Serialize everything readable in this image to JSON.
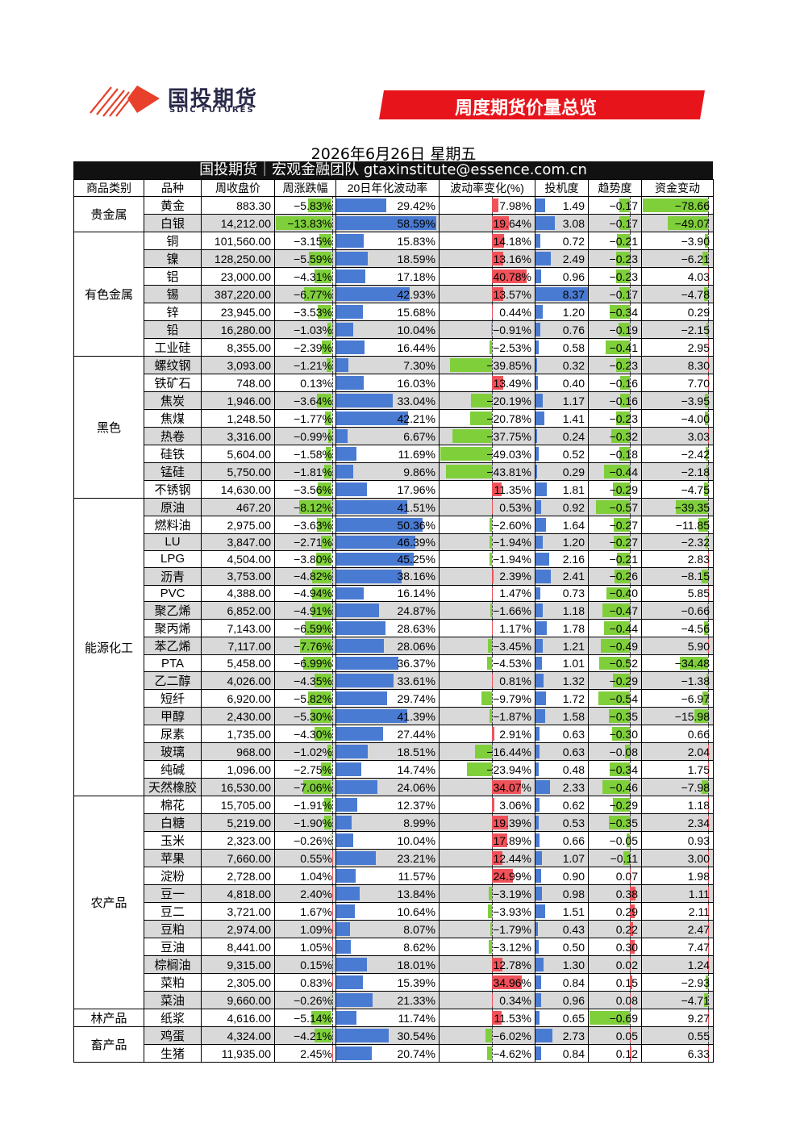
{
  "header": {
    "logo_cn": "国投期货",
    "logo_en": "SDIC FUTURES",
    "banner": "周度期货价量总览",
    "date": "2026年6月26日 星期五",
    "team": "国投期货｜宏观金融团队 gtaxinstitute@essence.com.cn"
  },
  "colors": {
    "banner": "#e8141b",
    "bar_blue": "#4a7bd3",
    "bar_red": "#f0525a",
    "bar_green": "#7fcf3b",
    "stripe": "#d9d9d9"
  },
  "columns": [
    "商品类别",
    "品种",
    "周收盘价",
    "周涨跌幅",
    "20日年化波动率",
    "波动率变化(%)",
    "投机度",
    "趋势度",
    "资金变动"
  ],
  "groups": [
    {
      "category": "贵金属",
      "rows": [
        {
          "name": "黄金",
          "close": "883.30",
          "chg": "-5.83%",
          "vol": "29.42%",
          "volchg": "7.98%",
          "spec": "1.49",
          "trend": "-0.17",
          "fund": "-78.66"
        },
        {
          "name": "白银",
          "close": "14,212.00",
          "chg": "-13.83%",
          "vol": "58.59%",
          "volchg": "19.64%",
          "spec": "3.08",
          "trend": "-0.17",
          "fund": "-49.07"
        }
      ]
    },
    {
      "category": "有色金属",
      "rows": [
        {
          "name": "铜",
          "close": "101,560.00",
          "chg": "-3.15%",
          "vol": "15.83%",
          "volchg": "14.18%",
          "spec": "0.72",
          "trend": "-0.21",
          "fund": "-3.90"
        },
        {
          "name": "镍",
          "close": "128,250.00",
          "chg": "-5.59%",
          "vol": "18.59%",
          "volchg": "13.16%",
          "spec": "2.49",
          "trend": "-0.23",
          "fund": "-6.21"
        },
        {
          "name": "铝",
          "close": "23,000.00",
          "chg": "-4.31%",
          "vol": "17.18%",
          "volchg": "40.78%",
          "spec": "0.96",
          "trend": "-0.23",
          "fund": "4.03"
        },
        {
          "name": "锡",
          "close": "387,220.00",
          "chg": "-6.77%",
          "vol": "42.93%",
          "volchg": "13.57%",
          "spec": "8.37",
          "trend": "-0.17",
          "fund": "-4.78"
        },
        {
          "name": "锌",
          "close": "23,945.00",
          "chg": "-3.53%",
          "vol": "15.68%",
          "volchg": "0.44%",
          "spec": "1.20",
          "trend": "-0.34",
          "fund": "0.29"
        },
        {
          "name": "铅",
          "close": "16,280.00",
          "chg": "-1.03%",
          "vol": "10.04%",
          "volchg": "-0.91%",
          "spec": "0.76",
          "trend": "-0.19",
          "fund": "-2.15"
        },
        {
          "name": "工业硅",
          "close": "8,355.00",
          "chg": "-2.39%",
          "vol": "16.44%",
          "volchg": "-2.53%",
          "spec": "0.58",
          "trend": "-0.41",
          "fund": "2.95"
        }
      ]
    },
    {
      "category": "黑色",
      "rows": [
        {
          "name": "螺纹钢",
          "close": "3,093.00",
          "chg": "-1.21%",
          "vol": "7.30%",
          "volchg": "-39.85%",
          "spec": "0.32",
          "trend": "-0.23",
          "fund": "8.30"
        },
        {
          "name": "铁矿石",
          "close": "748.00",
          "chg": "0.13%",
          "vol": "16.03%",
          "volchg": "13.49%",
          "spec": "0.40",
          "trend": "-0.16",
          "fund": "7.70"
        },
        {
          "name": "焦炭",
          "close": "1,946.00",
          "chg": "-3.64%",
          "vol": "33.04%",
          "volchg": "-20.19%",
          "spec": "1.17",
          "trend": "-0.16",
          "fund": "-3.95"
        },
        {
          "name": "焦煤",
          "close": "1,248.50",
          "chg": "-1.77%",
          "vol": "42.21%",
          "volchg": "-20.78%",
          "spec": "1.41",
          "trend": "-0.23",
          "fund": "-4.00"
        },
        {
          "name": "热卷",
          "close": "3,316.00",
          "chg": "-0.99%",
          "vol": "6.67%",
          "volchg": "-37.75%",
          "spec": "0.24",
          "trend": "-0.32",
          "fund": "3.03"
        },
        {
          "name": "硅铁",
          "close": "5,604.00",
          "chg": "-1.58%",
          "vol": "11.69%",
          "volchg": "-49.03%",
          "spec": "0.52",
          "trend": "-0.18",
          "fund": "-2.42"
        },
        {
          "name": "锰硅",
          "close": "5,750.00",
          "chg": "-1.81%",
          "vol": "9.86%",
          "volchg": "-43.81%",
          "spec": "0.29",
          "trend": "-0.44",
          "fund": "-2.18"
        },
        {
          "name": "不锈钢",
          "close": "14,630.00",
          "chg": "-3.56%",
          "vol": "17.96%",
          "volchg": "11.35%",
          "spec": "1.81",
          "trend": "-0.29",
          "fund": "-4.75"
        }
      ]
    },
    {
      "category": "能源化工",
      "rows": [
        {
          "name": "原油",
          "close": "467.20",
          "chg": "-8.12%",
          "vol": "41.51%",
          "volchg": "0.53%",
          "spec": "0.92",
          "trend": "-0.57",
          "fund": "-39.35"
        },
        {
          "name": "燃料油",
          "close": "2,975.00",
          "chg": "-3.63%",
          "vol": "50.36%",
          "volchg": "-2.60%",
          "spec": "1.64",
          "trend": "-0.27",
          "fund": "-11.85"
        },
        {
          "name": "LU",
          "close": "3,847.00",
          "chg": "-2.71%",
          "vol": "46.39%",
          "volchg": "-1.94%",
          "spec": "1.20",
          "trend": "-0.27",
          "fund": "-2.32"
        },
        {
          "name": "LPG",
          "close": "4,504.00",
          "chg": "-3.80%",
          "vol": "45.25%",
          "volchg": "-1.94%",
          "spec": "2.16",
          "trend": "-0.21",
          "fund": "2.83"
        },
        {
          "name": "沥青",
          "close": "3,753.00",
          "chg": "-4.82%",
          "vol": "38.16%",
          "volchg": "2.39%",
          "spec": "2.41",
          "trend": "-0.26",
          "fund": "-8.15"
        },
        {
          "name": "PVC",
          "close": "4,388.00",
          "chg": "-4.94%",
          "vol": "16.14%",
          "volchg": "1.47%",
          "spec": "0.73",
          "trend": "-0.40",
          "fund": "5.85"
        },
        {
          "name": "聚乙烯",
          "close": "6,852.00",
          "chg": "-4.91%",
          "vol": "24.87%",
          "volchg": "-1.66%",
          "spec": "1.18",
          "trend": "-0.47",
          "fund": "-0.66"
        },
        {
          "name": "聚丙烯",
          "close": "7,143.00",
          "chg": "-6.59%",
          "vol": "28.63%",
          "volchg": "1.17%",
          "spec": "1.78",
          "trend": "-0.44",
          "fund": "-4.56"
        },
        {
          "name": "苯乙烯",
          "close": "7,117.00",
          "chg": "-7.76%",
          "vol": "28.06%",
          "volchg": "-3.45%",
          "spec": "1.21",
          "trend": "-0.49",
          "fund": "5.90"
        },
        {
          "name": "PTA",
          "close": "5,458.00",
          "chg": "-6.99%",
          "vol": "36.37%",
          "volchg": "-4.53%",
          "spec": "1.01",
          "trend": "-0.52",
          "fund": "-34.48"
        },
        {
          "name": "乙二醇",
          "close": "4,026.00",
          "chg": "-4.35%",
          "vol": "33.61%",
          "volchg": "0.81%",
          "spec": "1.32",
          "trend": "-0.29",
          "fund": "-1.38"
        },
        {
          "name": "短纤",
          "close": "6,920.00",
          "chg": "-5.82%",
          "vol": "29.74%",
          "volchg": "-9.79%",
          "spec": "1.72",
          "trend": "-0.54",
          "fund": "-6.97"
        },
        {
          "name": "甲醇",
          "close": "2,430.00",
          "chg": "-5.30%",
          "vol": "41.39%",
          "volchg": "-1.87%",
          "spec": "1.58",
          "trend": "-0.35",
          "fund": "-15.98"
        },
        {
          "name": "尿素",
          "close": "1,735.00",
          "chg": "-4.30%",
          "vol": "27.44%",
          "volchg": "2.91%",
          "spec": "0.63",
          "trend": "-0.30",
          "fund": "0.66"
        },
        {
          "name": "玻璃",
          "close": "968.00",
          "chg": "-1.02%",
          "vol": "18.51%",
          "volchg": "-16.44%",
          "spec": "0.63",
          "trend": "-0.08",
          "fund": "2.04"
        },
        {
          "name": "纯碱",
          "close": "1,096.00",
          "chg": "-2.75%",
          "vol": "14.74%",
          "volchg": "-23.94%",
          "spec": "0.48",
          "trend": "-0.34",
          "fund": "1.75"
        },
        {
          "name": "天然橡胶",
          "close": "16,530.00",
          "chg": "-7.06%",
          "vol": "24.06%",
          "volchg": "34.07%",
          "spec": "2.33",
          "trend": "-0.46",
          "fund": "-7.98"
        }
      ]
    },
    {
      "category": "农产品",
      "rows": [
        {
          "name": "棉花",
          "close": "15,705.00",
          "chg": "-1.91%",
          "vol": "12.37%",
          "volchg": "3.06%",
          "spec": "0.62",
          "trend": "-0.29",
          "fund": "1.18"
        },
        {
          "name": "白糖",
          "close": "5,219.00",
          "chg": "-1.90%",
          "vol": "8.99%",
          "volchg": "19.39%",
          "spec": "0.53",
          "trend": "-0.35",
          "fund": "2.34"
        },
        {
          "name": "玉米",
          "close": "2,323.00",
          "chg": "-0.26%",
          "vol": "10.04%",
          "volchg": "17.89%",
          "spec": "0.66",
          "trend": "-0.05",
          "fund": "0.93"
        },
        {
          "name": "苹果",
          "close": "7,660.00",
          "chg": "0.55%",
          "vol": "23.21%",
          "volchg": "12.44%",
          "spec": "1.07",
          "trend": "-0.11",
          "fund": "3.00"
        },
        {
          "name": "淀粉",
          "close": "2,728.00",
          "chg": "1.04%",
          "vol": "11.57%",
          "volchg": "24.99%",
          "spec": "0.90",
          "trend": "0.07",
          "fund": "1.98"
        },
        {
          "name": "豆一",
          "close": "4,818.00",
          "chg": "2.40%",
          "vol": "13.84%",
          "volchg": "-3.19%",
          "spec": "0.98",
          "trend": "0.38",
          "fund": "1.11"
        },
        {
          "name": "豆二",
          "close": "3,721.00",
          "chg": "1.67%",
          "vol": "10.64%",
          "volchg": "-3.93%",
          "spec": "1.51",
          "trend": "0.29",
          "fund": "2.11"
        },
        {
          "name": "豆粕",
          "close": "2,974.00",
          "chg": "1.09%",
          "vol": "8.07%",
          "volchg": "-1.79%",
          "spec": "0.43",
          "trend": "0.22",
          "fund": "2.47"
        },
        {
          "name": "豆油",
          "close": "8,441.00",
          "chg": "1.05%",
          "vol": "8.62%",
          "volchg": "-3.12%",
          "spec": "0.50",
          "trend": "0.30",
          "fund": "7.47"
        },
        {
          "name": "棕榈油",
          "close": "9,315.00",
          "chg": "0.15%",
          "vol": "18.01%",
          "volchg": "12.78%",
          "spec": "1.30",
          "trend": "0.02",
          "fund": "1.24"
        },
        {
          "name": "菜粕",
          "close": "2,305.00",
          "chg": "0.83%",
          "vol": "15.39%",
          "volchg": "34.96%",
          "spec": "0.84",
          "trend": "0.15",
          "fund": "-2.93"
        },
        {
          "name": "菜油",
          "close": "9,660.00",
          "chg": "-0.26%",
          "vol": "21.33%",
          "volchg": "0.34%",
          "spec": "0.96",
          "trend": "0.08",
          "fund": "-4.71"
        }
      ]
    },
    {
      "category": "林产品",
      "rows": [
        {
          "name": "纸浆",
          "close": "4,616.00",
          "chg": "-5.14%",
          "vol": "11.74%",
          "volchg": "11.53%",
          "spec": "0.65",
          "trend": "-0.69",
          "fund": "9.27"
        }
      ]
    },
    {
      "category": "畜产品",
      "rows": [
        {
          "name": "鸡蛋",
          "close": "4,324.00",
          "chg": "-4.21%",
          "vol": "30.54%",
          "volchg": "-6.02%",
          "spec": "2.73",
          "trend": "0.05",
          "fund": "0.55"
        },
        {
          "name": "生猪",
          "close": "11,935.00",
          "chg": "2.45%",
          "vol": "20.74%",
          "volchg": "-4.62%",
          "spec": "0.84",
          "trend": "0.12",
          "fund": "6.33"
        }
      ]
    }
  ]
}
